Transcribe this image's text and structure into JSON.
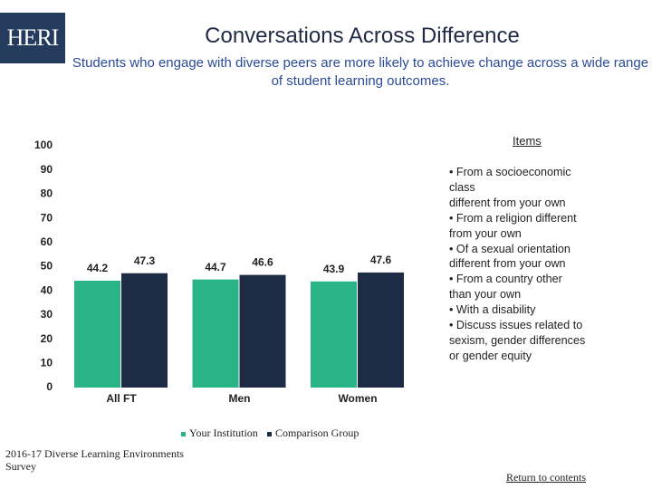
{
  "logo": "HERI",
  "title": "Conversations Across Difference",
  "subtitle": "Students who engage with diverse peers are more likely to achieve change across a wide range of student learning outcomes.",
  "chart_data": {
    "type": "bar",
    "categories": [
      "All FT",
      "Men",
      "Women"
    ],
    "series": [
      {
        "name": "Your Institution",
        "color": "#29b387",
        "values": [
          44.2,
          44.7,
          43.9
        ]
      },
      {
        "name": "Comparison Group",
        "color": "#1e2b45",
        "values": [
          47.3,
          46.6,
          47.6
        ]
      }
    ],
    "ylim": [
      0,
      100
    ],
    "yticks": [
      0,
      10,
      20,
      30,
      40,
      50,
      60,
      70,
      80,
      90,
      100
    ],
    "grid": false
  },
  "items": {
    "heading": "Items",
    "lines": [
      "• From a socioeconomic",
      "class",
      "different from your own",
      "• From a religion different",
      "from your own",
      "• Of a sexual orientation",
      "different from your own",
      "• From a country other",
      "than your own",
      "• With a disability",
      "• Discuss issues related to",
      "sexism, gender differences",
      "or gender equity"
    ]
  },
  "source": "2016-17 Diverse Learning Environments Survey",
  "link": "Return to contents"
}
